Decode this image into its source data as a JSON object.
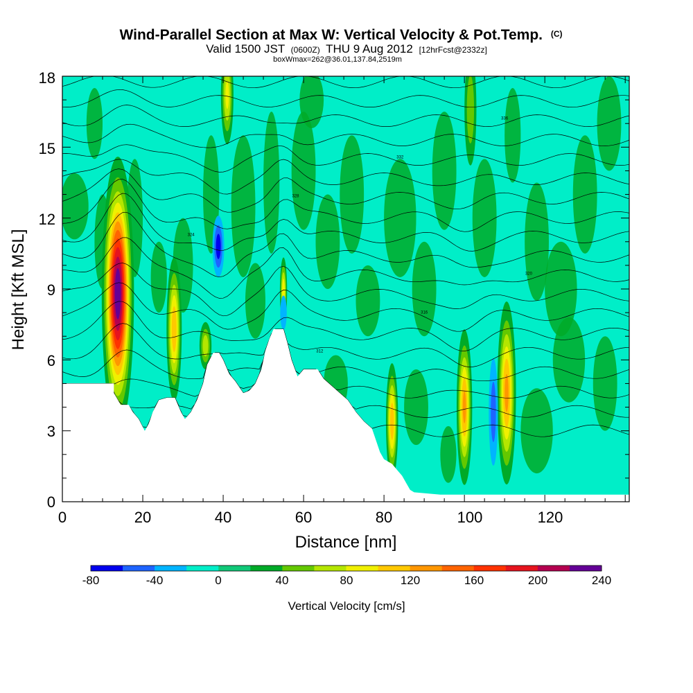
{
  "chart_data": {
    "type": "heatmap",
    "title": "Wind-Parallel Section at Max W: Vertical Velocity & Pot.Temp.",
    "title_mark": "(C)",
    "subtitle_pre": "Valid 1500 JST",
    "subtitle_utc": "(0600Z)",
    "subtitle_date": "THU 9 Aug 2012",
    "subtitle_fcst": "[12hrFcst@2332z]",
    "subtitle2": "boxWmax=262@36.01,137.84,2519m",
    "xlabel": "Distance [nm]",
    "ylabel": "Height [Kft MSL]",
    "xlim": [
      0,
      141
    ],
    "ylim": [
      0,
      18
    ],
    "x_ticks": [
      "0",
      "20",
      "40",
      "60",
      "80",
      "100",
      "120"
    ],
    "y_ticks": [
      "0",
      "3",
      "6",
      "9",
      "12",
      "15",
      "18"
    ],
    "colorbar": {
      "label": "Vertical Velocity [cm/s]",
      "tick_labels": [
        "-80",
        "-40",
        "0",
        "40",
        "80",
        "120",
        "160",
        "200",
        "240"
      ],
      "levels": [
        -80,
        -60,
        -40,
        -20,
        0,
        20,
        40,
        60,
        80,
        100,
        120,
        140,
        160,
        180,
        200,
        220,
        240
      ],
      "colors": [
        "#0000ee",
        "#1e64ff",
        "#00b4ff",
        "#00eec8",
        "#10c878",
        "#00aa28",
        "#64c800",
        "#b4e600",
        "#f0f000",
        "#ffc800",
        "#ff9600",
        "#ff6400",
        "#ff3200",
        "#e6141e",
        "#b40050",
        "#640096"
      ]
    },
    "background_color": "#00eec8",
    "terrain_profile": [
      [
        0,
        5
      ],
      [
        12.8,
        5
      ],
      [
        12.8,
        4.6
      ],
      [
        13.5,
        4.4
      ],
      [
        14.5,
        4.1
      ],
      [
        16.5,
        4.1
      ],
      [
        17.5,
        3.8
      ],
      [
        19,
        3.5
      ],
      [
        20.5,
        3
      ],
      [
        21.5,
        3.3
      ],
      [
        22.5,
        3.8
      ],
      [
        24,
        4.3
      ],
      [
        26,
        4.4
      ],
      [
        28,
        4.4
      ],
      [
        29.5,
        3.8
      ],
      [
        30.5,
        3.5
      ],
      [
        32,
        3.8
      ],
      [
        33.5,
        4.3
      ],
      [
        35,
        5
      ],
      [
        36,
        5.8
      ],
      [
        37.5,
        6.3
      ],
      [
        39,
        6.3
      ],
      [
        40,
        6
      ],
      [
        41.5,
        5.4
      ],
      [
        43,
        5.1
      ],
      [
        45,
        4.6
      ],
      [
        46.5,
        4.7
      ],
      [
        48,
        5
      ],
      [
        49.5,
        5.6
      ],
      [
        50.5,
        6.4
      ],
      [
        51.5,
        6.9
      ],
      [
        52.5,
        7.3
      ],
      [
        55,
        7.3
      ],
      [
        56,
        6.7
      ],
      [
        57,
        6
      ],
      [
        58.5,
        5.3
      ],
      [
        60,
        5.6
      ],
      [
        63.5,
        5.6
      ],
      [
        65,
        5.2
      ],
      [
        67,
        4.9
      ],
      [
        69,
        4.6
      ],
      [
        71,
        4.3
      ],
      [
        73,
        3.8
      ],
      [
        75,
        3.4
      ],
      [
        77,
        3.1
      ],
      [
        78,
        2.6
      ],
      [
        79,
        2.1
      ],
      [
        80,
        1.8
      ],
      [
        82,
        1.6
      ],
      [
        83.5,
        1.3
      ],
      [
        84.5,
        1.1
      ],
      [
        85.5,
        0.8
      ],
      [
        86.5,
        0.5
      ],
      [
        87.5,
        0.4
      ],
      [
        94,
        0.3
      ],
      [
        94,
        0.3
      ],
      [
        141,
        0.3
      ]
    ],
    "vertical_velocity_cells": [
      {
        "x": 13.8,
        "z": 8.8,
        "sx": 1.8,
        "sz": 2.6,
        "w": 240
      },
      {
        "x": 27.8,
        "z": 7.3,
        "sx": 1.0,
        "sz": 1.6,
        "w": 120
      },
      {
        "x": 35.6,
        "z": 6.6,
        "sx": 0.9,
        "sz": 0.6,
        "w": 80
      },
      {
        "x": 41.0,
        "z": 17.2,
        "sx": 0.9,
        "sz": 1.2,
        "w": 90
      },
      {
        "x": 55.0,
        "z": 8.9,
        "sx": 0.5,
        "sz": 0.8,
        "w": 100
      },
      {
        "x": 82.0,
        "z": 3.4,
        "sx": 0.8,
        "sz": 1.3,
        "w": 120
      },
      {
        "x": 100.0,
        "z": 4.0,
        "sx": 1.0,
        "sz": 1.7,
        "w": 130
      },
      {
        "x": 110.5,
        "z": 4.6,
        "sx": 1.2,
        "sz": 2.0,
        "w": 130
      },
      {
        "x": 101.5,
        "z": 16.6,
        "sx": 1.0,
        "sz": 1.6,
        "w": 60
      },
      {
        "x": 38.8,
        "z": 10.8,
        "sx": 0.9,
        "sz": 0.8,
        "w": -75
      },
      {
        "x": 107.2,
        "z": 3.8,
        "sx": 0.8,
        "sz": 1.6,
        "w": -55
      },
      {
        "x": 55.0,
        "z": 8.0,
        "sx": 0.9,
        "sz": 0.8,
        "w": -30
      }
    ],
    "series": [
      {
        "name": "potential temperature",
        "values": [
          304,
          306,
          308,
          310,
          312,
          314,
          316,
          318,
          320,
          322,
          324,
          326,
          328,
          330,
          332,
          334,
          336,
          338,
          340
        ]
      }
    ]
  }
}
